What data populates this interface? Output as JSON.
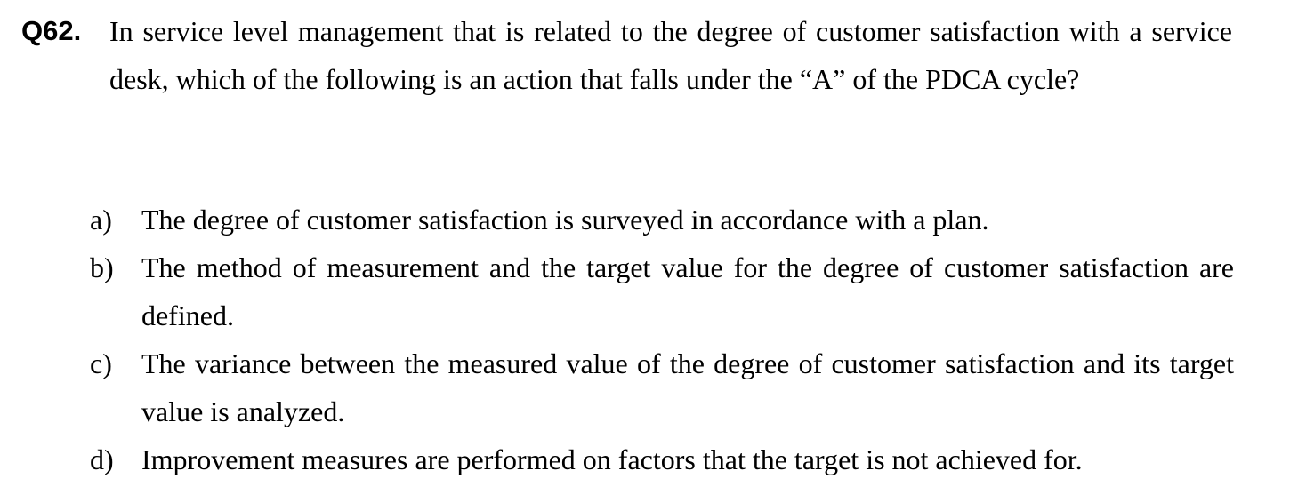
{
  "question": {
    "number": "Q62.",
    "text": "In service level management that is related to the degree of customer satisfaction with a service desk, which of the following is an action that falls under the “A” of the PDCA cycle?"
  },
  "options": [
    {
      "letter": "a)",
      "text": "The degree of customer satisfaction is surveyed in accordance with a plan."
    },
    {
      "letter": "b)",
      "text": "The method of measurement and the target value for the degree of customer satisfaction are defined."
    },
    {
      "letter": "c)",
      "text": "The variance between the measured value of the degree of customer satisfaction and its target value is analyzed."
    },
    {
      "letter": "d)",
      "text": "Improvement measures are performed on factors that the target is not achieved for."
    }
  ]
}
